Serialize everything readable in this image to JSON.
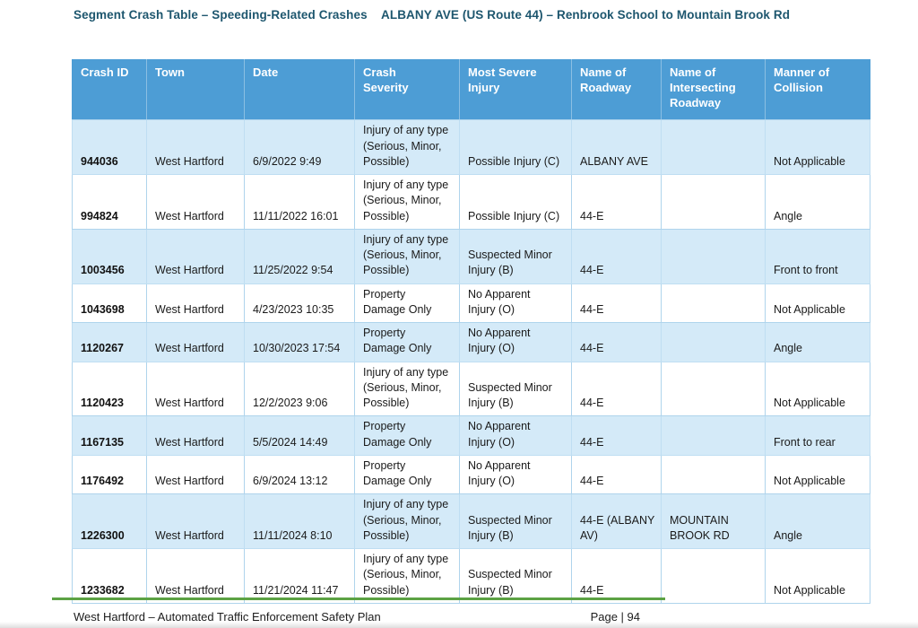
{
  "titles": {
    "left": "Segment Crash Table – Speeding-Related Crashes",
    "right": "ALBANY AVE (US Route 44) – Renbrook School to Mountain Brook Rd"
  },
  "table": {
    "columns": [
      "Crash ID",
      "Town",
      "Date",
      "Crash\nSeverity",
      "Most Severe\nInjury",
      "Name of\nRoadway",
      "Name of\nIntersecting\nRoadway",
      "Manner of\nCollision"
    ],
    "column_keys": [
      "crash_id",
      "town",
      "date",
      "severity",
      "injury",
      "roadway",
      "intersecting",
      "collision"
    ],
    "rows": [
      {
        "crash_id": "944036",
        "town": "West Hartford",
        "date": "6/9/2022 9:49",
        "severity": "Injury of any type\n(Serious, Minor,\nPossible)",
        "injury": "Possible Injury (C)",
        "roadway": "ALBANY AVE",
        "intersecting": "",
        "collision": "Not Applicable"
      },
      {
        "crash_id": "994824",
        "town": "West Hartford",
        "date": "11/11/2022 16:01",
        "severity": "Injury of any type\n(Serious, Minor,\nPossible)",
        "injury": "Possible Injury (C)",
        "roadway": "44-E",
        "intersecting": "",
        "collision": "Angle"
      },
      {
        "crash_id": "1003456",
        "town": "West Hartford",
        "date": "11/25/2022 9:54",
        "severity": "Injury of any type\n(Serious, Minor,\nPossible)",
        "injury": "Suspected Minor\nInjury (B)",
        "roadway": "44-E",
        "intersecting": "",
        "collision": "Front to front"
      },
      {
        "crash_id": "1043698",
        "town": "West Hartford",
        "date": "4/23/2023 10:35",
        "severity": "Property\nDamage Only",
        "injury": "No Apparent\nInjury (O)",
        "roadway": "44-E",
        "intersecting": "",
        "collision": "Not Applicable"
      },
      {
        "crash_id": "1120267",
        "town": "West Hartford",
        "date": "10/30/2023 17:54",
        "severity": "Property\nDamage Only",
        "injury": "No Apparent\nInjury (O)",
        "roadway": "44-E",
        "intersecting": "",
        "collision": "Angle"
      },
      {
        "crash_id": "1120423",
        "town": "West Hartford",
        "date": "12/2/2023 9:06",
        "severity": "Injury of any type\n(Serious, Minor,\nPossible)",
        "injury": "Suspected Minor\nInjury (B)",
        "roadway": "44-E",
        "intersecting": "",
        "collision": "Not Applicable"
      },
      {
        "crash_id": "1167135",
        "town": "West Hartford",
        "date": "5/5/2024 14:49",
        "severity": "Property\nDamage Only",
        "injury": "No Apparent\nInjury (O)",
        "roadway": "44-E",
        "intersecting": "",
        "collision": "Front to rear"
      },
      {
        "crash_id": "1176492",
        "town": "West Hartford",
        "date": "6/9/2024 13:12",
        "severity": "Property\nDamage Only",
        "injury": "No Apparent\nInjury (O)",
        "roadway": "44-E",
        "intersecting": "",
        "collision": "Not Applicable"
      },
      {
        "crash_id": "1226300",
        "town": "West Hartford",
        "date": "11/11/2024 8:10",
        "severity": "Injury of any type\n(Serious, Minor,\nPossible)",
        "injury": "Suspected Minor\nInjury (B)",
        "roadway": "44-E (ALBANY\nAV)",
        "intersecting": "MOUNTAIN\nBROOK RD",
        "collision": "Angle"
      },
      {
        "crash_id": "1233682",
        "town": "West Hartford",
        "date": "11/21/2024 11:47",
        "severity": "Injury of any type\n(Serious, Minor,\nPossible)",
        "injury": "Suspected Minor\nInjury (B)",
        "roadway": "44-E",
        "intersecting": "",
        "collision": "Not Applicable"
      }
    ]
  },
  "footer": {
    "left": "West Hartford – Automated Traffic Enforcement Safety Plan",
    "right": "Page | 94"
  },
  "colors": {
    "table_header_bg": "#4D9DD5",
    "row_band_bg": "#D4EAF8",
    "cell_border": "#AFD4EC",
    "title_text": "#1D566E",
    "footer_rule_green": "#5CA244"
  }
}
